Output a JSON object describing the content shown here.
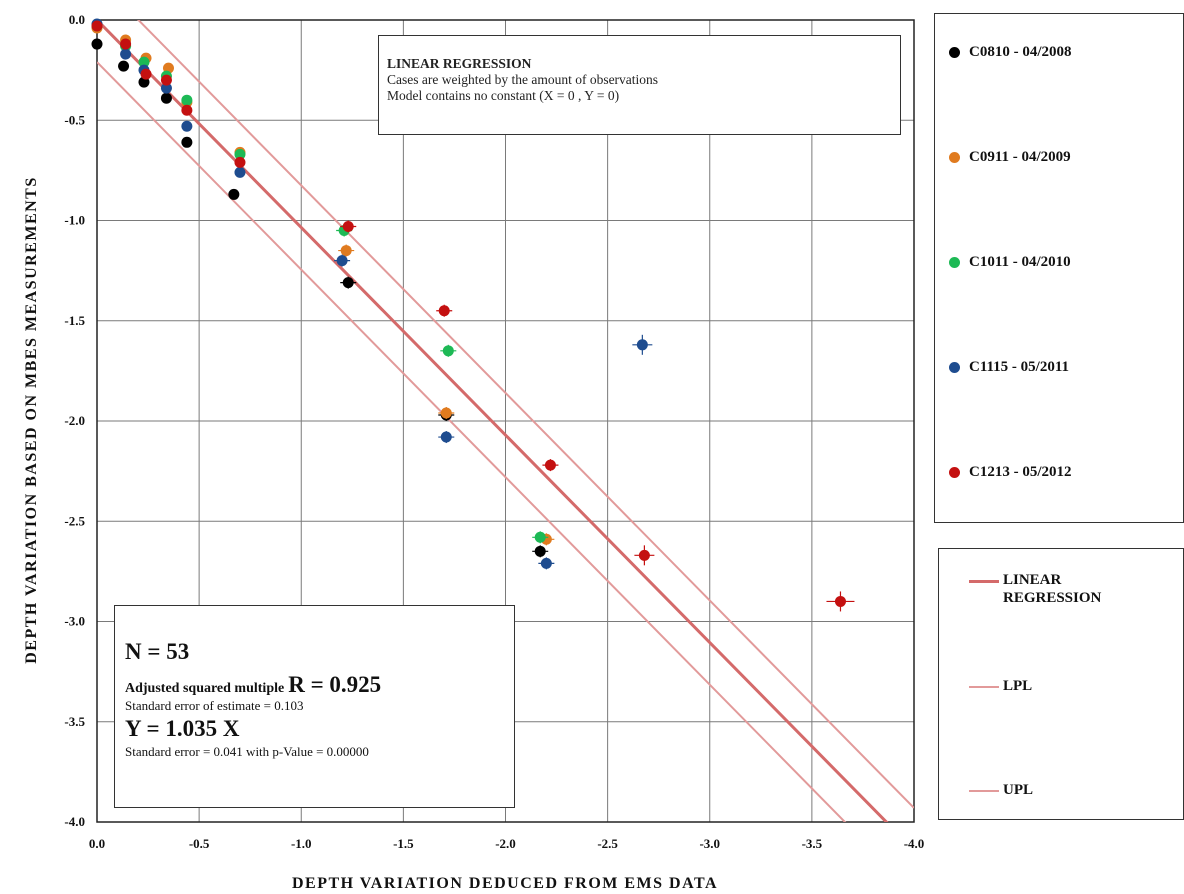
{
  "chart_data": {
    "type": "scatter",
    "xlabel": "DEPTH VARIATION DEDUCED FROM EMS DATA",
    "ylabel": "DEPTH VARIATION BASED ON MBES MEASUREMENTS",
    "xlim": [
      0.0,
      -4.0
    ],
    "ylim": [
      -4.0,
      0.0
    ],
    "x_ticks": [
      "0.0",
      "-0.5",
      "-1.0",
      "-1.5",
      "-2.0",
      "-2.5",
      "-3.0",
      "-3.5",
      "-4.0"
    ],
    "y_ticks": [
      "0.0",
      "-0.5",
      "-1.0",
      "-1.5",
      "-2.0",
      "-2.5",
      "-3.0",
      "-3.5",
      "-4.0"
    ],
    "grid": true,
    "legend_placement": "right",
    "series": [
      {
        "name": "C0810 - 04/2008",
        "color": "#000000",
        "points": [
          [
            0.0,
            -0.12
          ],
          [
            -0.13,
            -0.23
          ],
          [
            -0.23,
            -0.31
          ],
          [
            -0.34,
            -0.39
          ],
          [
            -0.44,
            -0.61
          ],
          [
            -0.67,
            -0.87
          ],
          [
            -1.23,
            -1.31
          ],
          [
            -1.71,
            -1.97
          ],
          [
            -2.17,
            -2.65
          ]
        ]
      },
      {
        "name": "C0911 - 04/2009",
        "color": "#e07b1f",
        "points": [
          [
            0.0,
            -0.04
          ],
          [
            -0.14,
            -0.1
          ],
          [
            -0.24,
            -0.19
          ],
          [
            -0.35,
            -0.24
          ],
          [
            -0.44,
            -0.41
          ],
          [
            -0.7,
            -0.66
          ],
          [
            -1.22,
            -1.15
          ],
          [
            -1.71,
            -1.96
          ],
          [
            -2.2,
            -2.59
          ]
        ]
      },
      {
        "name": "C1011 - 04/2010",
        "color": "#1db955",
        "points": [
          [
            0.0,
            -0.03
          ],
          [
            -0.14,
            -0.13
          ],
          [
            -0.23,
            -0.21
          ],
          [
            -0.34,
            -0.28
          ],
          [
            -0.44,
            -0.4
          ],
          [
            -0.7,
            -0.67
          ],
          [
            -1.21,
            -1.05
          ],
          [
            -1.72,
            -1.65
          ],
          [
            -2.17,
            -2.58
          ]
        ]
      },
      {
        "name": "C1115 - 05/2011",
        "color": "#1e4c8f",
        "points": [
          [
            0.0,
            -0.02
          ],
          [
            -0.14,
            -0.17
          ],
          [
            -0.23,
            -0.25
          ],
          [
            -0.34,
            -0.34
          ],
          [
            -0.44,
            -0.53
          ],
          [
            -0.7,
            -0.76
          ],
          [
            -1.2,
            -1.2
          ],
          [
            -1.71,
            -2.08
          ],
          [
            -2.2,
            -2.71
          ],
          [
            -2.67,
            -1.62
          ]
        ]
      },
      {
        "name": "C1213 - 05/2012",
        "color": "#c41010",
        "points": [
          [
            0.0,
            -0.03
          ],
          [
            -0.14,
            -0.12
          ],
          [
            -0.24,
            -0.27
          ],
          [
            -0.34,
            -0.3
          ],
          [
            -0.44,
            -0.45
          ],
          [
            -0.7,
            -0.71
          ],
          [
            -1.23,
            -1.03
          ],
          [
            -1.7,
            -1.45
          ],
          [
            -2.22,
            -2.22
          ],
          [
            -2.68,
            -2.67
          ],
          [
            -3.64,
            -2.9
          ]
        ]
      }
    ],
    "lines": [
      {
        "name": "LINEAR REGRESSION",
        "color": "#d46a6a",
        "slope": 1.035,
        "intercept": 0.0
      },
      {
        "name": "LPL",
        "color": "#e29a9a",
        "slope": 1.035,
        "intercept": -0.21
      },
      {
        "name": "UPL",
        "color": "#e29a9a",
        "slope": 1.035,
        "intercept": 0.21
      }
    ]
  },
  "regression_box": {
    "title": "LINEAR REGRESSION",
    "line1": "Cases are weighted by the amount of observations",
    "line2": "Model contains no constant (X = 0 , Y = 0)"
  },
  "stats_box": {
    "n": "N = 53",
    "r_label": "Adjusted squared multiple",
    "r_value": "R = 0.925",
    "std_err_estimate": "Standard error of estimate = 0.103",
    "equation": "Y = 1.035 X",
    "std_err": "Standard error = 0.041  with p-Value =  0.00000"
  },
  "legend_lines": [
    {
      "label": "LINEAR REGRESSION",
      "color": "#d46a6a",
      "width": 3
    },
    {
      "label": "LPL",
      "color": "#e29a9a",
      "width": 2
    },
    {
      "label": "UPL",
      "color": "#e29a9a",
      "width": 2
    }
  ]
}
